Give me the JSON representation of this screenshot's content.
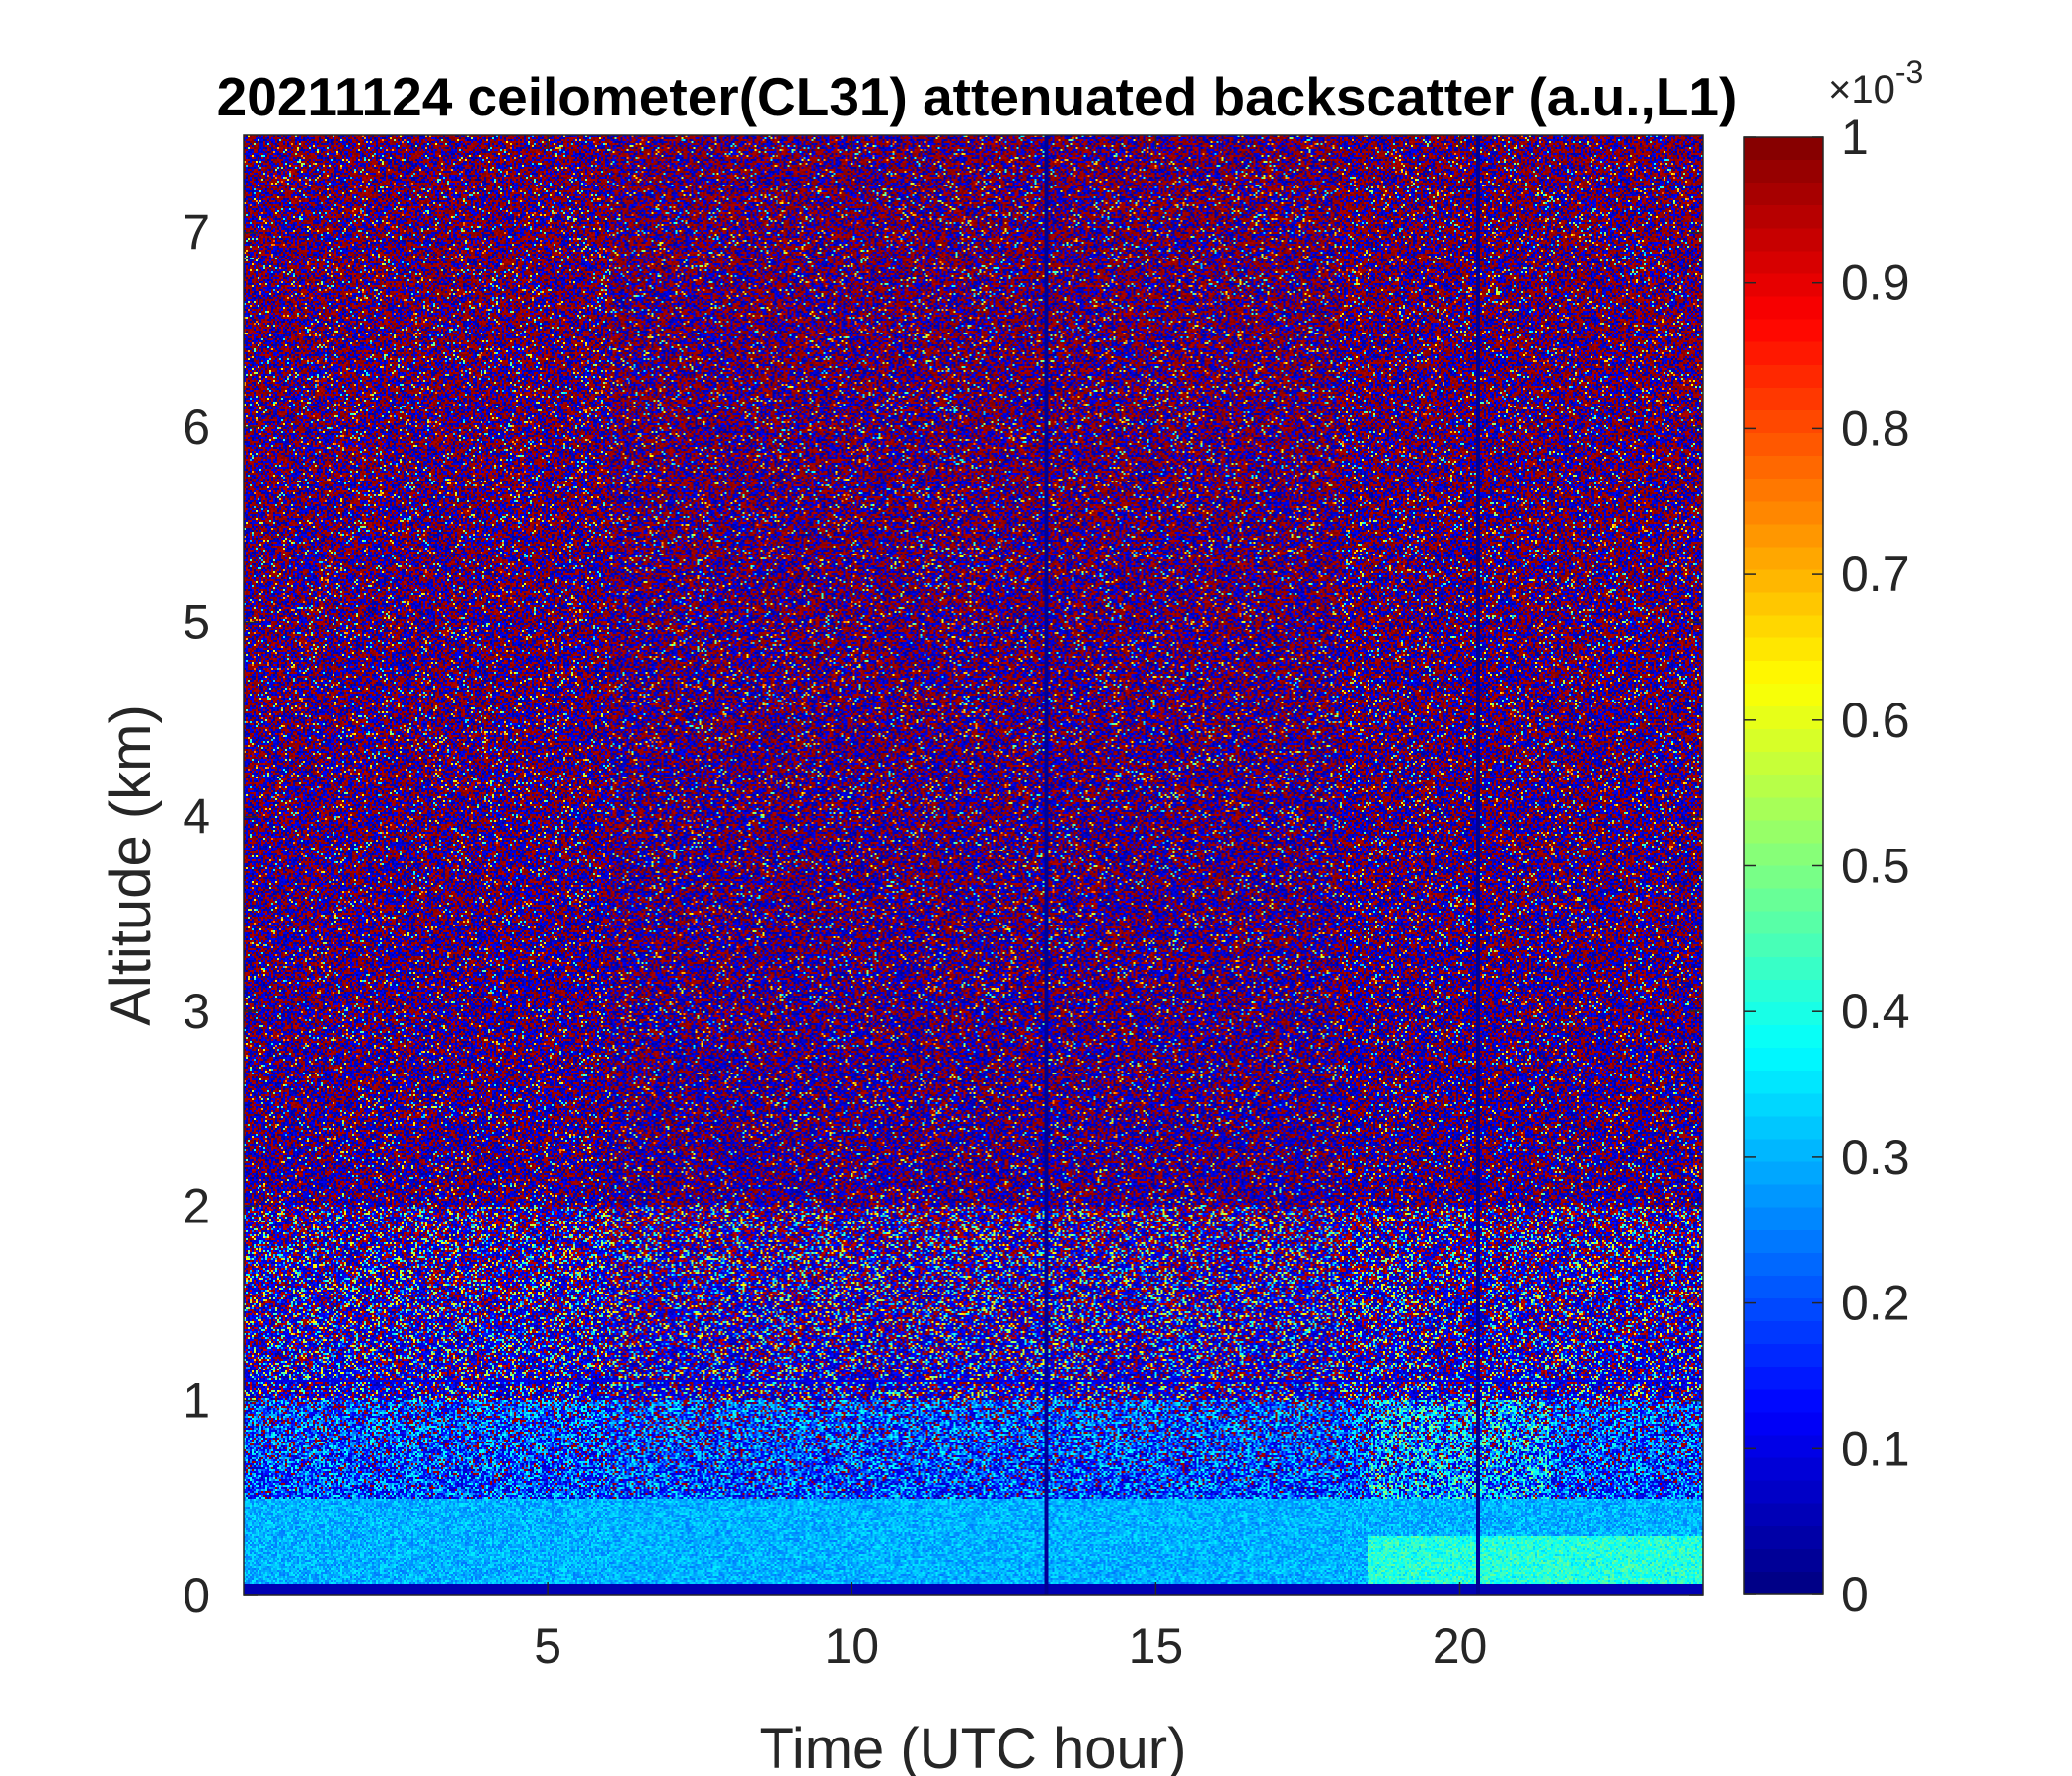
{
  "chart_data": {
    "type": "heatmap",
    "title": "20211124 ceilometer(CL31) attenuated backscatter (a.u.,L1)",
    "xlabel": "Time (UTC hour)",
    "ylabel": "Altitude (km)",
    "xlim": [
      0,
      24
    ],
    "ylim": [
      0,
      7.5
    ],
    "x_ticks": [
      5,
      10,
      15,
      20
    ],
    "x_tick_labels": [
      "5",
      "10",
      "15",
      "20"
    ],
    "y_ticks": [
      0,
      1,
      2,
      3,
      4,
      5,
      6,
      7
    ],
    "y_tick_labels": [
      "0",
      "1",
      "2",
      "3",
      "4",
      "5",
      "6",
      "7"
    ],
    "colorbar": {
      "colormap": "jet",
      "range": [
        0,
        0.001
      ],
      "ticks": [
        0,
        0.1,
        0.2,
        0.3,
        0.4,
        0.5,
        0.6,
        0.7,
        0.8,
        0.9,
        1
      ],
      "tick_labels": [
        "0",
        "0.1",
        "0.2",
        "0.3",
        "0.4",
        "0.5",
        "0.6",
        "0.7",
        "0.8",
        "0.9",
        "1"
      ],
      "exponent_label": "×10",
      "exponent_power": "-3"
    },
    "features": {
      "surface_layer_km": [
        0,
        0.5
      ],
      "surface_layer_level": 0.3,
      "noise_dominated_above_km": 2,
      "vertical_gap_lines_hour": [
        13.2,
        20.3
      ],
      "horizontal_artifact_line_km": 1.1,
      "enhanced_signal_period_hour": [
        18.5,
        21.5
      ]
    }
  }
}
